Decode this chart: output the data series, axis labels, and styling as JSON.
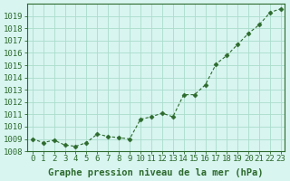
{
  "x": [
    0,
    1,
    2,
    3,
    4,
    5,
    6,
    7,
    8,
    9,
    10,
    11,
    12,
    13,
    14,
    15,
    16,
    17,
    18,
    19,
    20,
    21,
    22,
    23
  ],
  "y": [
    1009.0,
    1008.7,
    1008.9,
    1008.5,
    1008.4,
    1008.7,
    1009.4,
    1009.2,
    1009.1,
    1009.0,
    1010.6,
    1010.8,
    1011.1,
    1010.8,
    1012.6,
    1012.6,
    1013.4,
    1015.1,
    1015.8,
    1016.7,
    1017.6,
    1018.3,
    1019.3,
    1019.6
  ],
  "line_color": "#2d6a2d",
  "marker_color": "#2d6a2d",
  "bg_color": "#d8f5f0",
  "grid_color": "#aaddcc",
  "xlabel": "Graphe pression niveau de la mer (hPa)",
  "ylim_min": 1008,
  "ylim_max": 1020,
  "xlim_min": -0.5,
  "xlim_max": 23.3,
  "yticks": [
    1008,
    1009,
    1010,
    1011,
    1012,
    1013,
    1014,
    1015,
    1016,
    1017,
    1018,
    1019
  ],
  "xticks": [
    0,
    1,
    2,
    3,
    4,
    5,
    6,
    7,
    8,
    9,
    10,
    11,
    12,
    13,
    14,
    15,
    16,
    17,
    18,
    19,
    20,
    21,
    22,
    23
  ],
  "tick_color": "#2d6a2d",
  "axis_color": "#2d6a2d",
  "xlabel_fontsize": 7.5,
  "tick_fontsize": 6.5
}
